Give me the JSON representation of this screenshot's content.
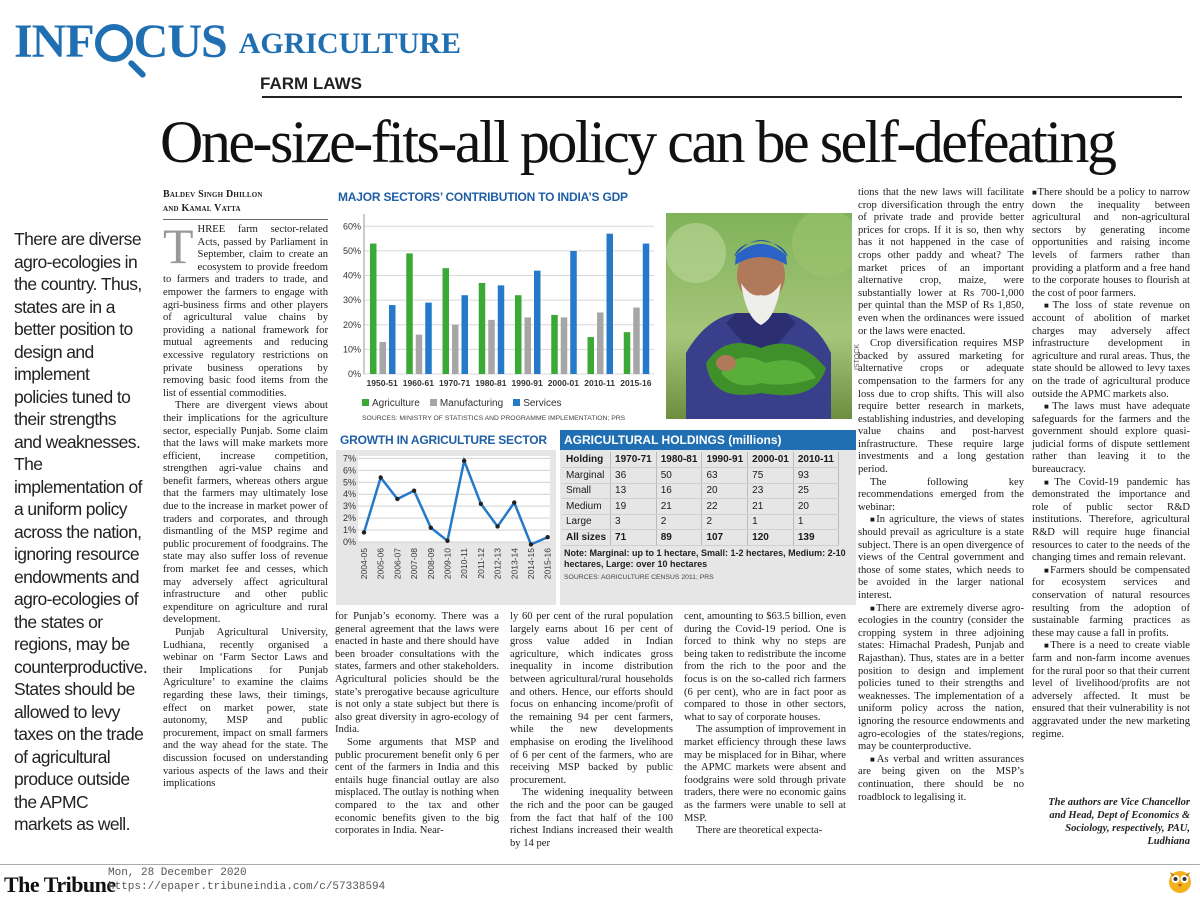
{
  "header": {
    "brand_in": "INF",
    "brand_cus": "CUS",
    "section": "AGRICULTURE",
    "kicker": "FARM LAWS",
    "headline": "One-size-fits-all policy can be self-defeating"
  },
  "byline": {
    "line1": "Baldev Singh Dhillon",
    "line2": "and Kamal Vatta"
  },
  "pullquote": "There are diverse agro-ecologies in the country. Thus, states are in a better position to design and implement policies tuned to their strengths and weaknesses. The implementation of a uniform policy across the nation, ignoring resource endowments and agro-ecologies of the states or regions, may be counterproductive. States should be allowed to levy taxes on the trade of agricultural produce outside the APMC markets as well.",
  "article": {
    "col1": {
      "dropcap": "T",
      "p1": "HREE farm sector-related Acts, passed by Parliament in September, claim to create an ecosystem to provide freedom to farmers and traders to trade, and empower the farmers to engage with agri-business firms and other players of agricultural value chains by providing a national framework for mutual agreements and reducing excessive regulatory restrictions on private business operations by removing basic food items from the list of essential commodities.",
      "p2": "There are divergent views about their implications for the agriculture sector, especially Punjab. Some claim that the laws will make markets more efficient, increase competition, strengthen agri-value chains and benefit farmers, whereas others argue that the farmers may ultimately lose due to the increase in market power of traders and corporates, and through dismantling of the MSP regime and public procurement of foodgrains. The state may also suffer loss of revenue from market fee and cesses, which may adversely affect agricultural infrastructure and other public expenditure on agriculture and rural development.",
      "p3": "Punjab Agricultural University, Ludhiana, recently organised a webinar on ‘Farm Sector Laws and their Implications for Punjab Agriculture’ to examine the claims regarding these laws, their timings, effect on market power, state autonomy, MSP and public procurement, impact on small farmers and the way ahead for the state. The discussion focused on understanding various aspects of the laws and their implications"
    },
    "col2": {
      "p1": "for Punjab’s economy. There was a general agreement that the laws were enacted in haste and there should have been broader consultations with the states, farmers and other stakeholders. Agricultural policies should be the state’s prerogative because agriculture is not only a state subject but there is also great diversity in agro-ecology of India.",
      "p2": "Some arguments that MSP and public procurement benefit only 6 per cent of the farmers in India and this entails huge financial outlay are also misplaced. The outlay is nothing when compared to the tax and other economic benefits given to the big corporates in India. Near-"
    },
    "col3": {
      "p1": "ly 60 per cent of the rural population largely earns about 16 per cent of gross value added in Indian agriculture, which indicates gross inequality in income distribution between agricultural/rural households and others. Hence, our efforts should focus on enhancing income/profit of the remaining 94 per cent farmers, while the new developments emphasise on eroding the livelihood of 6 per cent of the farmers, who are receiving MSP backed by public procurement.",
      "p2": "The widening inequality between the rich and the poor can be gauged from the fact that half of the 100 richest Indians increased their wealth by 14 per"
    },
    "col4": {
      "p1": "cent, amounting to $63.5 billion, even during the Covid-19 period. One is forced to think why no steps are being taken to redistribute the income from the rich to the poor and the focus is on the so-called rich farmers (6 per cent), who are in fact poor as compared to those in other sectors, what to say of corporate houses.",
      "p2": "The assumption of improvement in market efficiency through these laws may be misplaced for in Bihar, where the APMC markets were absent and foodgrains were sold through private traders, there were no economic gains as the farmers were unable to sell at MSP.",
      "p3": "There are theoretical expecta-"
    },
    "col5": {
      "p1": "tions that the new laws will facilitate crop diversification through the entry of private trade and provide better prices for crops. If it is so, then why has it not happened in the case of crops other paddy and wheat? The market prices of an important alternative crop, maize, were substantially lower at Rs 700-1,000 per quintal than the MSP of Rs 1,850, even when the ordinances were issued or the laws were enacted.",
      "p2": "Crop diversification requires MSP backed by assured marketing for alternative crops or adequate compensation to the farmers for any loss due to crop shifts. This will also require better research in markets, establishing industries, and developing value chains and post-harvest infrastructure. These require large investments and a long gestation period.",
      "p3": "The following key recommendations emerged from the webinar:",
      "b1": "In agriculture, the views of states should prevail as agriculture is a state subject. There is an open divergence of views of the Central government and those of some states, which needs to be avoided in the larger national interest.",
      "b2": "There are extremely diverse agro-ecologies in the country (consider the cropping system in three adjoining states: Himachal Pradesh, Punjab and Rajasthan). Thus, states are in a better position to design and implement policies tuned to their strengths and weaknesses. The implementation of a uniform policy across the nation, ignoring the resource endowments and agro-ecologies of the states/regions, may be counterproductive.",
      "b3": "As verbal and written assurances are being given on the MSP’s continuation, there should be no roadblock to legalising it."
    },
    "col6": {
      "b1": "There should be a policy to narrow down the inequality between agricultural and non-agricultural sectors by generating income opportunities and raising income levels of farmers rather than providing a platform and a free hand to the corporate houses to flourish at the cost of poor farmers.",
      "b2": "The loss of state revenue on account of abolition of market charges may adversely affect infrastructure development in agriculture and rural areas. Thus, the state should be allowed to levy taxes on the trade of agricultural produce outside the APMC markets also.",
      "b3": "The laws must have adequate safeguards for the farmers and the government should explore quasi-judicial forms of dispute settlement rather than leaving it to the bureaucracy.",
      "b4": "The Covid-19 pandemic has demonstrated the importance and role of public sector R&D institutions. Therefore, agricultural R&D will require huge financial resources to cater to the needs of the changing times and remain relevant.",
      "b5": "Farmers should be compensated for ecosystem services and conservation of natural resources resulting from the adoption of sustainable farming practices as these may cause a fall in profits.",
      "b6": "There is a need to create viable farm and non-farm income avenues for the rural poor so that their current level of livelihood/profits are not adversely affected. It must be ensured that their vulnerability is not aggravated under the new marketing regime."
    },
    "authors": "The authors are Vice Chancellor and Head, Dept of Economics & Sociology, respectively, PAU, Ludhiana"
  },
  "photo_credit": "ISTOCK",
  "chart_data": [
    {
      "type": "bar",
      "title": "MAJOR SECTORS’ CONTRIBUTION TO INDIA’S GDP",
      "categories": [
        "1950-51",
        "1960-61",
        "1970-71",
        "1980-81",
        "1990-91",
        "2000-01",
        "2010-11",
        "2015-16"
      ],
      "series": [
        {
          "name": "Agriculture",
          "color": "#3aa935",
          "values": [
            53,
            49,
            43,
            37,
            32,
            24,
            15,
            17
          ]
        },
        {
          "name": "Manufacturing",
          "color": "#a6a6a6",
          "values": [
            13,
            16,
            20,
            22,
            23,
            23,
            25,
            27
          ]
        },
        {
          "name": "Services",
          "color": "#2479c8",
          "values": [
            28,
            29,
            32,
            36,
            42,
            50,
            57,
            53
          ]
        }
      ],
      "yticks": [
        "60%",
        "50%",
        "40%",
        "30%",
        "20%",
        "10%",
        "0%"
      ],
      "ylim": [
        0,
        65
      ],
      "grid": true,
      "legend": "bottom-left",
      "source": "SOURCES: MINISTRY OF STATISTICS AND PROGRAMME IMPLEMENTATION; PRS"
    },
    {
      "type": "line",
      "title": "GROWTH IN AGRICULTURE SECTOR",
      "x": [
        "2004-05",
        "2005-06",
        "2006-07",
        "2007-08",
        "2008-09",
        "2009-10",
        "2010-11",
        "2011-12",
        "2012-13",
        "2013-14",
        "2014-15",
        "2015-16"
      ],
      "values": [
        0.8,
        5.4,
        3.6,
        4.3,
        1.2,
        0.1,
        6.8,
        3.2,
        1.3,
        3.3,
        -0.2,
        0.4
      ],
      "color": "#2479c8",
      "yticks": [
        "7%",
        "6%",
        "5%",
        "4%",
        "3%",
        "2%",
        "1%",
        "0%"
      ],
      "ylim": [
        0,
        7.2
      ],
      "grid": true
    },
    {
      "type": "table",
      "title": "AGRICULTURAL HOLDINGS (millions)",
      "columns": [
        "Holding",
        "1970-71",
        "1980-81",
        "1990-91",
        "2000-01",
        "2010-11"
      ],
      "rows": [
        [
          "Marginal",
          "36",
          "50",
          "63",
          "75",
          "93"
        ],
        [
          "Small",
          "13",
          "16",
          "20",
          "23",
          "25"
        ],
        [
          "Medium",
          "19",
          "21",
          "22",
          "21",
          "20"
        ],
        [
          "Large",
          "3",
          "2",
          "2",
          "1",
          "1"
        ],
        [
          "All sizes",
          "71",
          "89",
          "107",
          "120",
          "139"
        ]
      ],
      "note_label": "Note:",
      "note": "Marginal: up to 1 hectare, Small: 1-2 hectares, Medium: 2-10 hectares, Large: over 10 hectares",
      "source": "SOURCES: AGRICULTURE CENSUS 2011; PRS"
    }
  ],
  "footer": {
    "logo": "The Tribune",
    "date": "Mon, 28 December 2020",
    "url": "https://epaper.tribuneindia.com/c/57338594"
  }
}
